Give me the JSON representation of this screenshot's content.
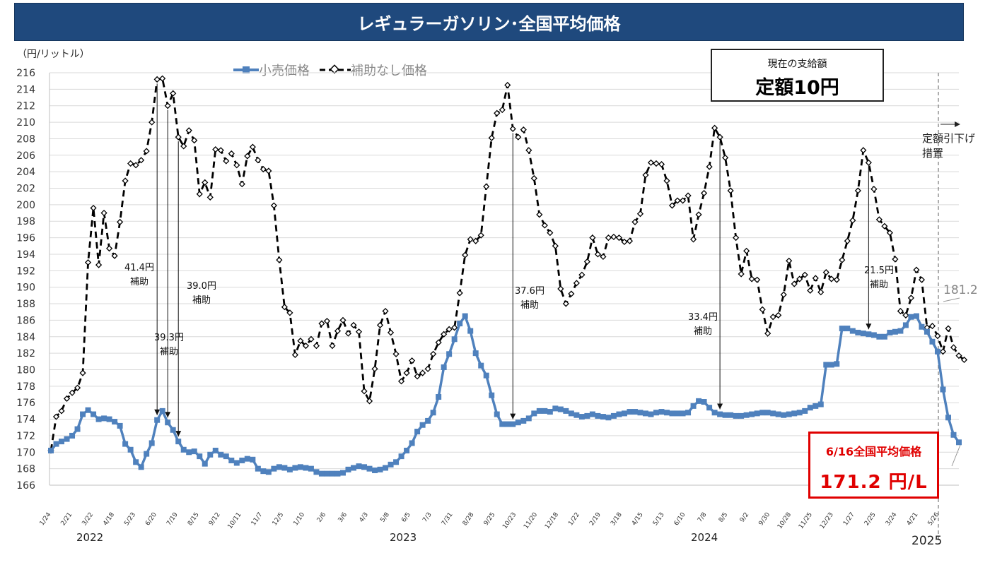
{
  "title": "レギュラーガソリン･全国平均価格",
  "unit_label": "（円/リットル）",
  "status_box": {
    "label": "現在の支給額",
    "value": "定額10円"
  },
  "latest_box": {
    "label": "6/16全国平均価格",
    "value": "171.2 円/L"
  },
  "end_measure_note": "定額引下げ\n措置",
  "end_value_label": "181.2",
  "subsidy_notes": [
    {
      "text": "41.4円\n補助"
    },
    {
      "text": "39.3円\n補助"
    },
    {
      "text": "39.0円\n補助"
    },
    {
      "text": "37.6円\n補助"
    },
    {
      "text": "33.4円\n補助"
    },
    {
      "text": "21.5円\n補助"
    }
  ],
  "year_labels": [
    "2022",
    "2023",
    "2024",
    "2025"
  ],
  "colors": {
    "retail": "#4f81bd",
    "no_subsidy": "#000000",
    "title_bg": "#1f497d",
    "highlight": "#e00000"
  },
  "chart_data": {
    "type": "line",
    "ylim": [
      166,
      216
    ],
    "y_ticks": [
      166,
      168,
      170,
      172,
      174,
      176,
      178,
      180,
      182,
      184,
      186,
      188,
      190,
      192,
      194,
      196,
      198,
      200,
      202,
      204,
      206,
      208,
      210,
      212,
      214,
      216
    ],
    "x_tick_labels": [
      "1/24",
      "2/21",
      "3/22",
      "4/18",
      "5/23",
      "6/20",
      "7/19",
      "8/15",
      "9/12",
      "10/11",
      "11/7",
      "12/5",
      "1/10",
      "2/6",
      "3/6",
      "4/3",
      "5/8",
      "6/5",
      "7/3",
      "7/31",
      "8/28",
      "9/25",
      "10/23",
      "11/20",
      "12/18",
      "1/22",
      "2/19",
      "3/18",
      "4/15",
      "5/13",
      "6/10",
      "7/8",
      "8/5",
      "9/2",
      "9/30",
      "10/28",
      "11/25",
      "12/23",
      "1/27",
      "2/25",
      "3/24",
      "4/21",
      "5/26"
    ],
    "series": [
      {
        "name": "小売価格",
        "values": [
          170.2,
          171.0,
          171.3,
          171.6,
          172.0,
          172.8,
          174.6,
          175.1,
          174.6,
          174.0,
          174.1,
          174.0,
          173.7,
          173.2,
          171.0,
          170.3,
          168.8,
          168.2,
          169.8,
          171.1,
          173.9,
          175.0,
          173.6,
          172.7,
          171.3,
          170.3,
          170.0,
          170.1,
          169.5,
          168.6,
          169.7,
          170.2,
          169.7,
          169.5,
          169.0,
          168.7,
          169.0,
          169.2,
          169.1,
          168.0,
          167.7,
          167.6,
          168.0,
          168.2,
          168.1,
          167.9,
          168.1,
          168.2,
          168.1,
          168.0,
          167.6,
          167.4,
          167.4,
          167.4,
          167.4,
          167.5,
          167.9,
          168.1,
          168.3,
          168.2,
          168.0,
          167.8,
          167.9,
          168.1,
          168.5,
          168.8,
          169.5,
          170.2,
          171.1,
          172.5,
          173.3,
          173.8,
          174.8,
          176.7,
          180.3,
          181.9,
          183.7,
          185.6,
          186.5,
          184.7,
          182.0,
          180.5,
          179.3,
          176.9,
          174.6,
          173.4,
          173.4,
          173.4,
          173.6,
          173.8,
          174.1,
          174.7,
          175.0,
          175.0,
          174.9,
          175.3,
          175.2,
          175.0,
          174.7,
          174.5,
          174.3,
          174.4,
          174.6,
          174.4,
          174.3,
          174.2,
          174.4,
          174.6,
          174.7,
          174.9,
          174.9,
          174.8,
          174.7,
          174.6,
          174.8,
          174.9,
          174.8,
          174.7,
          174.7,
          174.7,
          174.8,
          175.6,
          176.2,
          176.1,
          175.4,
          174.8,
          174.6,
          174.5,
          174.5,
          174.4,
          174.4,
          174.5,
          174.6,
          174.7,
          174.8,
          174.8,
          174.7,
          174.6,
          174.5,
          174.6,
          174.7,
          174.8,
          175.0,
          175.4,
          175.6,
          175.8,
          180.6,
          180.6,
          180.7,
          185.0,
          185.0,
          184.7,
          184.5,
          184.4,
          184.3,
          184.2,
          184.0,
          184.0,
          184.5,
          184.6,
          184.7,
          185.4,
          186.4,
          186.5,
          185.2,
          184.6,
          183.4,
          182.2,
          177.6,
          174.2,
          172.1,
          171.2
        ]
      },
      {
        "name": "補助なし価格",
        "values": [
          170.2,
          174.3,
          175.0,
          176.5,
          177.2,
          177.8,
          179.6,
          193.0,
          199.6,
          192.7,
          199.0,
          194.7,
          193.8,
          197.9,
          202.9,
          205.0,
          204.8,
          205.4,
          206.5,
          210.0,
          215.2,
          215.3,
          212.0,
          213.5,
          208.2,
          207.1,
          209.0,
          207.8,
          201.3,
          202.7,
          200.9,
          206.7,
          206.6,
          205.3,
          206.2,
          204.8,
          202.5,
          205.9,
          207.0,
          205.4,
          204.3,
          204.1,
          199.9,
          193.3,
          187.6,
          186.9,
          181.8,
          183.5,
          182.9,
          183.7,
          182.9,
          185.6,
          185.9,
          182.9,
          184.7,
          186.0,
          184.4,
          185.4,
          184.6,
          177.4,
          176.2,
          180.1,
          185.4,
          187.1,
          184.5,
          181.9,
          178.6,
          179.6,
          181.1,
          179.2,
          179.6,
          180.1,
          181.9,
          183.3,
          184.3,
          184.9,
          185.1,
          189.3,
          193.9,
          195.8,
          195.6,
          196.3,
          202.2,
          208.1,
          211.1,
          211.5,
          214.5,
          209.2,
          208.2,
          209.1,
          206.6,
          203.2,
          198.8,
          197.5,
          196.6,
          195.0,
          189.8,
          188.0,
          189.2,
          190.5,
          191.5,
          193.1,
          196.0,
          194.0,
          193.7,
          196.0,
          196.1,
          196.0,
          195.5,
          195.6,
          197.9,
          198.9,
          203.6,
          205.1,
          205.0,
          204.9,
          202.9,
          199.9,
          200.5,
          200.5,
          201.1,
          195.8,
          198.8,
          201.4,
          204.6,
          209.3,
          208.2,
          205.7,
          201.7,
          196.0,
          191.6,
          194.4,
          191.0,
          190.9,
          187.3,
          184.4,
          186.4,
          186.6,
          189.1,
          193.2,
          190.4,
          191.0,
          191.5,
          189.6,
          191.1,
          189.4,
          191.8,
          191.0,
          190.9,
          193.3,
          195.6,
          198.1,
          201.7,
          206.6,
          205.1,
          201.9,
          198.2,
          197.4,
          196.6,
          193.4,
          187.1,
          186.6,
          188.7,
          192.1,
          190.9,
          185.1,
          185.3,
          184.1,
          182.2,
          185.0,
          182.7,
          181.7,
          181.2
        ]
      }
    ],
    "legend_placement": "top-left",
    "grid": true
  }
}
